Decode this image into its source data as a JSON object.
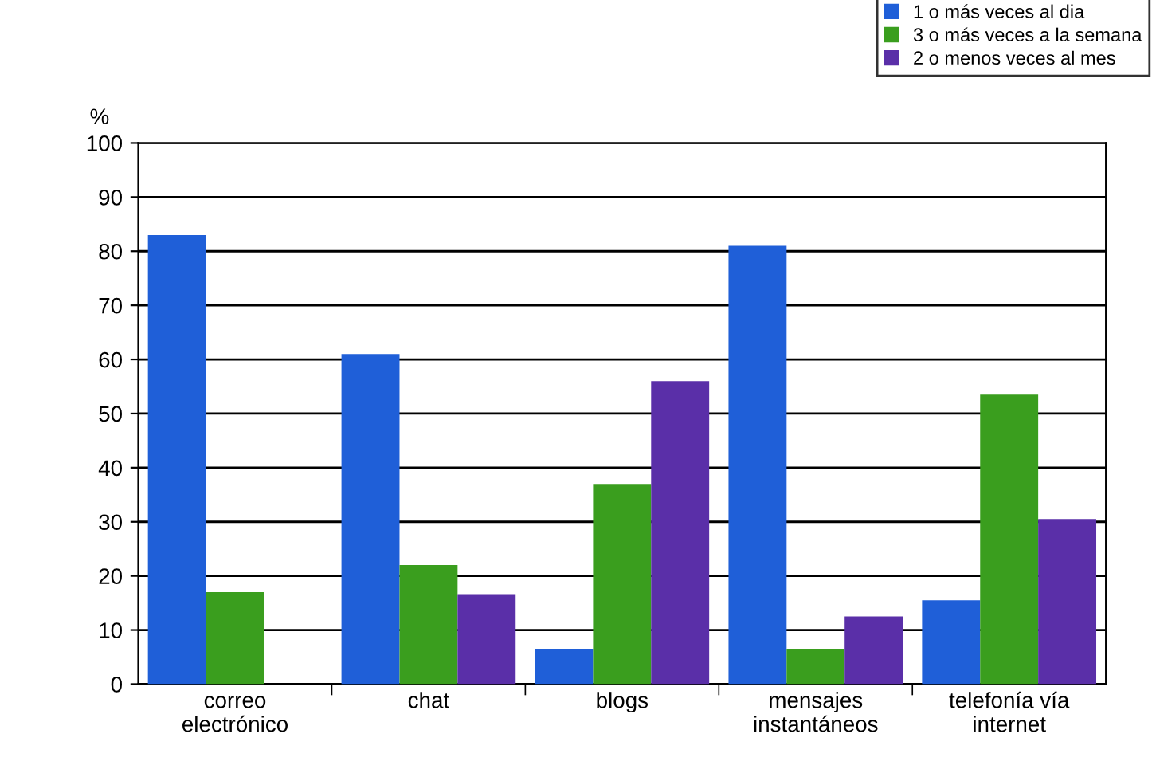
{
  "chart_data": {
    "type": "bar",
    "ylabel": "%",
    "categories": [
      "correo\nelectrónico",
      "chat",
      "blogs",
      "mensajes\ninstantáneos",
      "telefonía vía\ninternet"
    ],
    "series": [
      {
        "name": "1 o más veces al dia",
        "color": "#1f5fd8",
        "values": [
          83,
          61,
          6.5,
          81,
          15.5
        ]
      },
      {
        "name": "3 o más veces a la semana",
        "color": "#3a9e1e",
        "values": [
          17,
          22,
          37,
          6.5,
          53.5
        ]
      },
      {
        "name": "2 o menos veces al mes",
        "color": "#5a2fa8",
        "values": [
          null,
          16.5,
          56,
          12.5,
          30.5
        ]
      }
    ],
    "ylim": [
      0,
      100
    ],
    "yticks": [
      0,
      10,
      20,
      30,
      40,
      50,
      60,
      70,
      80,
      90,
      100
    ],
    "grid": "y",
    "legend": "top right"
  }
}
